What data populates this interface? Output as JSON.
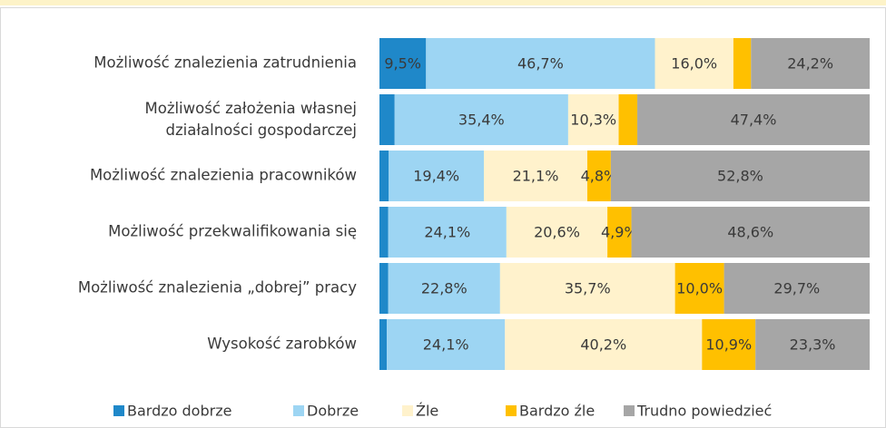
{
  "chart_data": {
    "type": "stacked-barh",
    "categories": [
      "Możliwość znalezienia zatrudnienia",
      "Możliwość założenia własnej\ndziałalności gospodarczej",
      "Możliwość znalezienia pracowników",
      "Możliwość przekwalifikowania się",
      "Możliwość znalezienia „dobrej” pracy",
      "Wysokość zarobków"
    ],
    "xlim": [
      0,
      100
    ],
    "series": [
      {
        "name": "Bardzo dobrze",
        "color": "#1f88c9",
        "values": [
          9.5,
          3.1,
          1.9,
          1.8,
          1.8,
          1.5
        ],
        "value_labels": [
          "9,5%",
          null,
          null,
          null,
          null,
          null
        ]
      },
      {
        "name": "Dobrze",
        "color": "#9dd5f3",
        "values": [
          46.7,
          35.4,
          19.4,
          24.1,
          22.8,
          24.1
        ],
        "value_labels": [
          "46,7%",
          "35,4%",
          "19,4%",
          "24,1%",
          "22,8%",
          "24,1%"
        ]
      },
      {
        "name": "Źle",
        "color": "#fff2cc",
        "values": [
          16.0,
          10.3,
          21.1,
          20.6,
          35.7,
          40.2
        ],
        "value_labels": [
          "16,0%",
          "10,3%",
          "21,1%",
          "20,6%",
          "35,7%",
          "40,2%"
        ]
      },
      {
        "name": "Bardzo źle",
        "color": "#ffc000",
        "values": [
          3.6,
          3.8,
          4.8,
          4.9,
          10.0,
          10.9
        ],
        "value_labels": [
          null,
          null,
          "4,8%",
          "4,9%",
          "10,0%",
          "10,9%"
        ]
      },
      {
        "name": "Trudno powiedzieć",
        "color": "#a6a6a6",
        "values": [
          24.2,
          47.4,
          52.8,
          48.6,
          29.7,
          23.3
        ],
        "value_labels": [
          "24,2%",
          "47,4%",
          "52,8%",
          "48,6%",
          "29,7%",
          "23,3%"
        ]
      }
    ]
  }
}
